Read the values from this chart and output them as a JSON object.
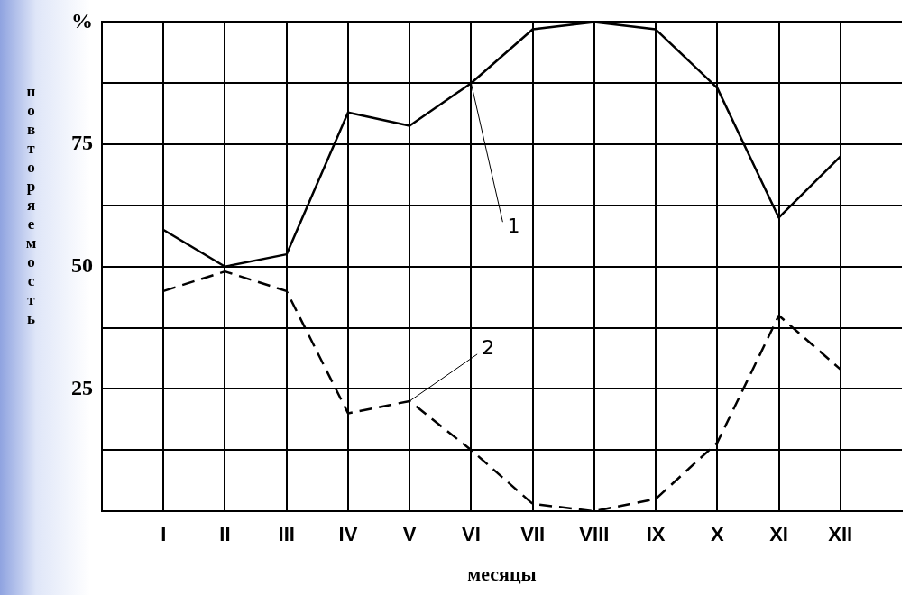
{
  "chart_data": {
    "type": "line",
    "xlabel": "месяцы",
    "ylabel": "повторяемость",
    "categories": [
      "I",
      "II",
      "III",
      "IV",
      "V",
      "VI",
      "VII",
      "VIII",
      "IX",
      "X",
      "XI",
      "XII"
    ],
    "ylim": [
      0,
      100
    ],
    "yticks": [
      {
        "value": 12.5,
        "label": null
      },
      25,
      {
        "value": 37.5,
        "label": null
      },
      50,
      {
        "value": 62.5,
        "label": null
      },
      75,
      {
        "value": 87.5,
        "label": null
      },
      {
        "value": 100,
        "label": "%"
      }
    ],
    "grid": true,
    "legend": false,
    "marker": "none",
    "series": [
      {
        "color": "#000000",
        "line_style": "solid",
        "values": [
          57.5,
          50,
          52.5,
          81.5,
          78.8,
          87.5,
          98.5,
          100,
          98.5,
          86.5,
          60,
          72.5
        ]
      },
      {
        "color": "#000000",
        "line_style": "dashed",
        "values": [
          45,
          49,
          45,
          20,
          22.5,
          12.5,
          1.5,
          0,
          2.5,
          14,
          40,
          29
        ]
      }
    ],
    "annotations": [
      {
        "text": "1",
        "x": "VI",
        "y": 87.5
      },
      {
        "text": "2",
        "x": "V",
        "y": 22.5
      }
    ]
  }
}
